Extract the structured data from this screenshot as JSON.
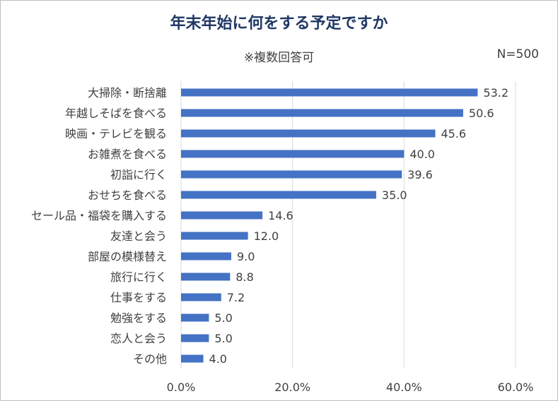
{
  "chart_data": {
    "type": "bar",
    "orientation": "horizontal",
    "title": "年末年始に何をする予定ですか",
    "subtitle": "※複数回答可",
    "note": "N=500",
    "categories": [
      "大掃除・断捨離",
      "年越しそばを食べる",
      "映画・テレビを観る",
      "お雑煮を食べる",
      "初詣に行く",
      "おせちを食べる",
      "セール品・福袋を購入する",
      "友達と会う",
      "部屋の模様替え",
      "旅行に行く",
      "仕事をする",
      "勉強をする",
      "恋人と会う",
      "その他"
    ],
    "values": [
      53.2,
      50.6,
      45.6,
      40.0,
      39.6,
      35.0,
      14.6,
      12.0,
      9.0,
      8.8,
      7.2,
      5.0,
      5.0,
      4.0
    ],
    "value_labels": [
      "53.2",
      "50.6",
      "45.6",
      "40.0",
      "39.6",
      "35.0",
      "14.6",
      "12.0",
      "9.0",
      "8.8",
      "7.2",
      "5.0",
      "5.0",
      "4.0"
    ],
    "xlim": [
      0,
      60
    ],
    "xticks": [
      "0.0%",
      "20.0%",
      "40.0%",
      "60.0%"
    ],
    "grid": true,
    "bar_color": "#4472c4",
    "title_color": "#1f3864"
  }
}
